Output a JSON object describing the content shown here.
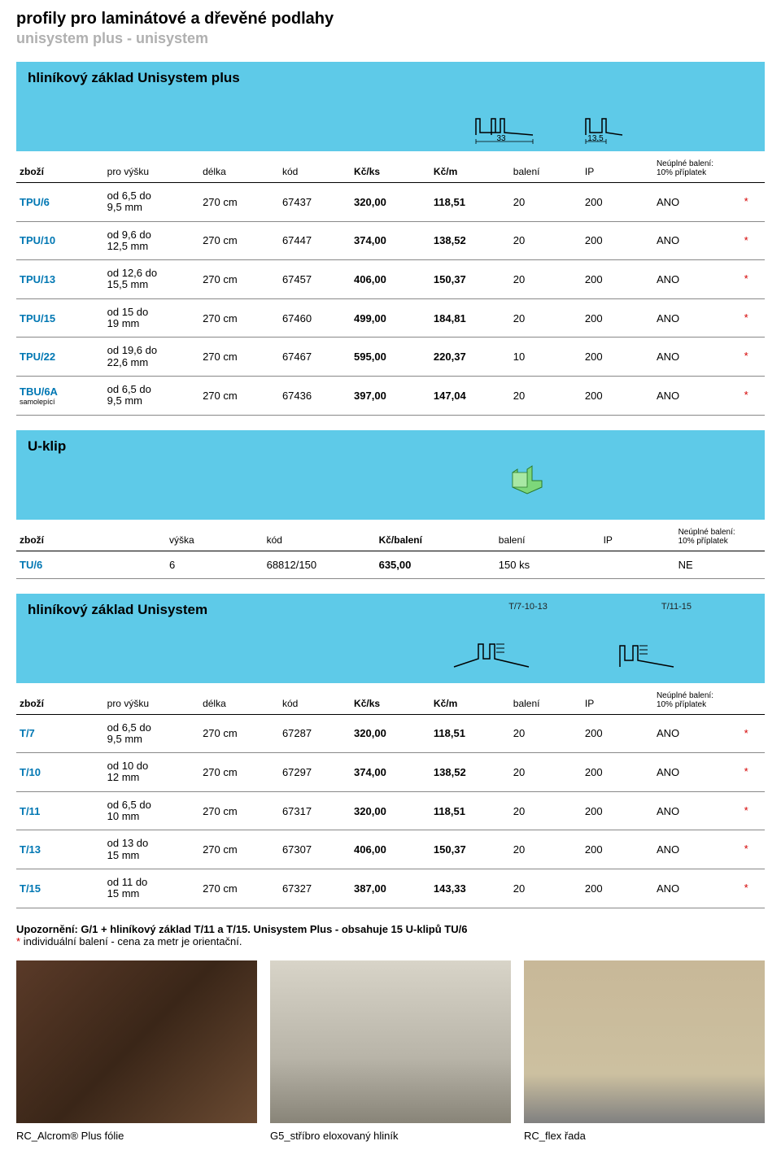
{
  "header": {
    "title": "profily pro laminátové a dřevěné podlahy",
    "subtitle": "unisystem plus - unisystem"
  },
  "section1": {
    "title": "hliníkový základ Unisystem plus",
    "dim_left": "33",
    "dim_right": "13,5",
    "columns": {
      "c0": "zboží",
      "c1": "pro výšku",
      "c2": "délka",
      "c3": "kód",
      "c4": "Kč/ks",
      "c5": "Kč/m",
      "c6": "balení",
      "c7": "IP",
      "c8a": "Neúplné balení:",
      "c8b": "10% příplatek"
    },
    "rows": [
      {
        "code": "TPU/6",
        "sub": "",
        "h1": "od 6,5 do",
        "h2": "9,5 mm",
        "len": "270 cm",
        "kod": "67437",
        "kcks": "320,00",
        "kcm": "118,51",
        "bal": "20",
        "ip": "200",
        "pack": "ANO",
        "star": "*"
      },
      {
        "code": "TPU/10",
        "sub": "",
        "h1": "od 9,6 do",
        "h2": "12,5 mm",
        "len": "270 cm",
        "kod": "67447",
        "kcks": "374,00",
        "kcm": "138,52",
        "bal": "20",
        "ip": "200",
        "pack": "ANO",
        "star": "*"
      },
      {
        "code": "TPU/13",
        "sub": "",
        "h1": "od 12,6 do",
        "h2": "15,5 mm",
        "len": "270 cm",
        "kod": "67457",
        "kcks": "406,00",
        "kcm": "150,37",
        "bal": "20",
        "ip": "200",
        "pack": "ANO",
        "star": "*"
      },
      {
        "code": "TPU/15",
        "sub": "",
        "h1": "od 15 do",
        "h2": "19 mm",
        "len": "270 cm",
        "kod": "67460",
        "kcks": "499,00",
        "kcm": "184,81",
        "bal": "20",
        "ip": "200",
        "pack": "ANO",
        "star": "*"
      },
      {
        "code": "TPU/22",
        "sub": "",
        "h1": "od 19,6 do",
        "h2": "22,6 mm",
        "len": "270 cm",
        "kod": "67467",
        "kcks": "595,00",
        "kcm": "220,37",
        "bal": "10",
        "ip": "200",
        "pack": "ANO",
        "star": "*"
      },
      {
        "code": "TBU/6A",
        "sub": "samolepící",
        "h1": "od 6,5 do",
        "h2": "9,5 mm",
        "len": "270 cm",
        "kod": "67436",
        "kcks": "397,00",
        "kcm": "147,04",
        "bal": "20",
        "ip": "200",
        "pack": "ANO",
        "star": "*"
      }
    ]
  },
  "section2": {
    "title": "U-klip",
    "columns": {
      "c0": "zboží",
      "c1": "výška",
      "c2": "kód",
      "c3": "Kč/balení",
      "c4": "balení",
      "c5": "IP",
      "c6a": "Neúplné balení:",
      "c6b": "10% příplatek"
    },
    "row": {
      "code": "TU/6",
      "h": "6",
      "kod": "68812/150",
      "kc": "635,00",
      "bal": "150 ks",
      "ip": "",
      "pack": "NE"
    }
  },
  "section3": {
    "title": "hliníkový základ Unisystem",
    "label_left": "T/7-10-13",
    "label_right": "T/11-15",
    "columns": {
      "c0": "zboží",
      "c1": "pro výšku",
      "c2": "délka",
      "c3": "kód",
      "c4": "Kč/ks",
      "c5": "Kč/m",
      "c6": "balení",
      "c7": "IP",
      "c8a": "Neúplné balení:",
      "c8b": "10% příplatek"
    },
    "rows": [
      {
        "code": "T/7",
        "h1": "od 6,5 do",
        "h2": "9,5 mm",
        "len": "270 cm",
        "kod": "67287",
        "kcks": "320,00",
        "kcm": "118,51",
        "bal": "20",
        "ip": "200",
        "pack": "ANO",
        "star": "*"
      },
      {
        "code": "T/10",
        "h1": "od 10 do",
        "h2": "12 mm",
        "len": "270 cm",
        "kod": "67297",
        "kcks": "374,00",
        "kcm": "138,52",
        "bal": "20",
        "ip": "200",
        "pack": "ANO",
        "star": "*"
      },
      {
        "code": "T/11",
        "h1": "od 6,5 do",
        "h2": "10 mm",
        "len": "270 cm",
        "kod": "67317",
        "kcks": "320,00",
        "kcm": "118,51",
        "bal": "20",
        "ip": "200",
        "pack": "ANO",
        "star": "*"
      },
      {
        "code": "T/13",
        "h1": "od 13 do",
        "h2": "15 mm",
        "len": "270 cm",
        "kod": "67307",
        "kcks": "406,00",
        "kcm": "150,37",
        "bal": "20",
        "ip": "200",
        "pack": "ANO",
        "star": "*"
      },
      {
        "code": "T/15",
        "h1": "od 11 do",
        "h2": "15 mm",
        "len": "270 cm",
        "kod": "67327",
        "kcks": "387,00",
        "kcm": "143,33",
        "bal": "20",
        "ip": "200",
        "pack": "ANO",
        "star": "*"
      }
    ]
  },
  "notes": {
    "line1": "Upozornění: G/1 + hliníkový základ T/11 a T/15. Unisystem Plus - obsahuje 15 U-klipů TU/6",
    "line2": "individuální balení - cena za metr je orientační.",
    "star": "*"
  },
  "captions": {
    "c1": "RC_Alcrom® Plus fólie",
    "c2": "G5_stříbro eloxovaný hliník",
    "c3": "RC_flex řada"
  }
}
